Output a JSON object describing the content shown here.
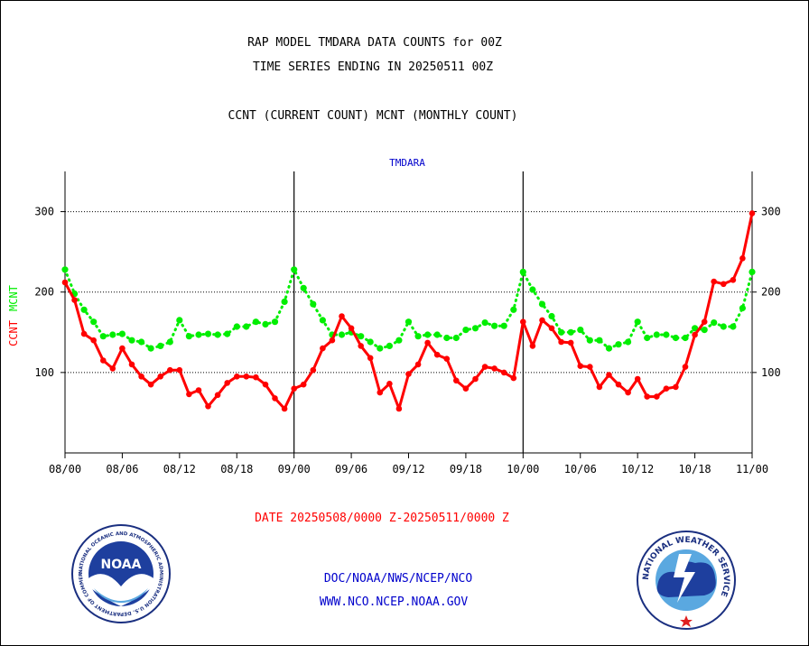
{
  "titles": {
    "line1": "RAP MODEL TMDARA DATA COUNTS for 00Z",
    "line2": "TIME SERIES ENDING IN 20250511 00Z",
    "line3": "CCNT (CURRENT COUNT) MCNT (MONTHLY COUNT)"
  },
  "colors": {
    "ccnt": "#ff0000",
    "mcnt": "#00ee00",
    "station_label": "#0000cc",
    "footer_links": "#0000cc",
    "date_range": "#ff0000"
  },
  "chart_data": {
    "type": "line",
    "title": "TMDARA",
    "ylim": [
      0,
      350
    ],
    "yticks": [
      100,
      200,
      300
    ],
    "y_tick_labels": [
      "100",
      "200",
      "300"
    ],
    "x_tick_labels": [
      "08/00",
      "08/06",
      "08/12",
      "08/18",
      "09/00",
      "09/06",
      "09/12",
      "09/18",
      "10/00",
      "10/06",
      "10/12",
      "10/18",
      "11/00"
    ],
    "ylabel_parts": [
      {
        "text": "CCNT",
        "color": "#ff0000"
      },
      {
        "text": "MCNT",
        "color": "#00ee00"
      }
    ],
    "grid": "horizontal",
    "series": [
      {
        "name": "CCNT",
        "color": "#ff0000",
        "values": [
          212,
          190,
          148,
          140,
          115,
          105,
          130,
          110,
          95,
          85,
          95,
          103,
          103,
          73,
          78,
          58,
          72,
          87,
          95,
          95,
          94,
          85,
          68,
          55,
          80,
          85,
          103,
          130,
          140,
          170,
          155,
          133,
          118,
          75,
          86,
          55,
          98,
          110,
          137,
          122,
          117,
          90,
          80,
          92,
          107,
          105,
          100,
          93,
          163,
          133,
          165,
          155,
          138,
          137,
          108,
          107,
          82,
          97,
          85,
          75,
          92,
          70,
          70,
          80,
          82,
          107,
          147,
          163,
          213,
          210,
          215,
          242,
          298
        ]
      },
      {
        "name": "MCNT",
        "color": "#00ee00",
        "values": [
          228,
          198,
          178,
          163,
          145,
          147,
          148,
          140,
          138,
          130,
          133,
          138,
          165,
          145,
          147,
          148,
          147,
          148,
          157,
          157,
          163,
          160,
          163,
          188,
          228,
          205,
          185,
          165,
          147,
          147,
          150,
          145,
          138,
          130,
          133,
          140,
          163,
          145,
          147,
          147,
          143,
          143,
          153,
          155,
          162,
          158,
          158,
          178,
          225,
          203,
          185,
          170,
          150,
          150,
          153,
          140,
          140,
          130,
          135,
          138,
          163,
          143,
          147,
          147,
          143,
          143,
          155,
          153,
          162,
          157,
          157,
          180,
          225
        ]
      }
    ]
  },
  "footer": {
    "date_range": "DATE 20250508/0000 Z-20250511/0000 Z",
    "link1": "DOC/NOAA/NWS/NCEP/NCO",
    "link2": "WWW.NCO.NCEP.NOAA.GOV",
    "noaa_logo": {
      "center": "NOAA",
      "ring": "NATIONAL OCEANIC AND ATMOSPHERIC ADMINISTRATION  U.S. DEPARTMENT OF COMMERCE"
    },
    "nws_logo": {
      "ring": "NATIONAL WEATHER SERVICE"
    }
  }
}
